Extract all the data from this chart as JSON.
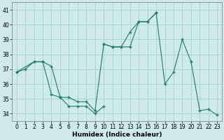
{
  "xlabel": "Humidex (Indice chaleur)",
  "background_color": "#ceeaea",
  "grid_color": "#afd4d4",
  "line_color": "#1e7b6e",
  "ylim": [
    33.5,
    41.5
  ],
  "xlim": [
    -0.5,
    23.5
  ],
  "yticks": [
    34,
    35,
    36,
    37,
    38,
    39,
    40,
    41
  ],
  "xticks": [
    0,
    1,
    2,
    3,
    4,
    5,
    6,
    7,
    8,
    9,
    10,
    11,
    12,
    13,
    14,
    15,
    16,
    17,
    18,
    19,
    20,
    21,
    22,
    23
  ],
  "series": [
    {
      "x": [
        0,
        1,
        2,
        3,
        4,
        5,
        6,
        7,
        8,
        9,
        10
      ],
      "y": [
        36.8,
        37.0,
        37.5,
        37.5,
        37.2,
        35.1,
        34.5,
        34.5,
        34.5,
        34.0,
        34.5
      ]
    },
    {
      "x": [
        0,
        2,
        3,
        4,
        5,
        6,
        7,
        8,
        9,
        10,
        11,
        12,
        13,
        14,
        15,
        16
      ],
      "y": [
        36.8,
        37.5,
        37.5,
        35.3,
        35.1,
        35.1,
        34.8,
        34.8,
        34.2,
        38.7,
        38.5,
        38.5,
        39.5,
        40.2,
        40.2,
        40.8
      ]
    },
    {
      "x": [
        10,
        11,
        12,
        13,
        14,
        15,
        16,
        17,
        18,
        19,
        20,
        21,
        22,
        23
      ],
      "y": [
        38.7,
        38.5,
        38.5,
        38.5,
        40.2,
        40.2,
        40.8,
        36.0,
        36.8,
        39.0,
        37.5,
        34.2,
        34.3,
        33.9
      ]
    }
  ]
}
